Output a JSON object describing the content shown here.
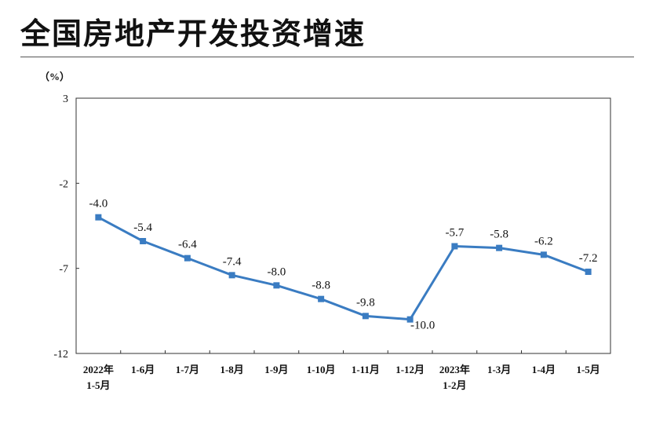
{
  "title": "全国房地产开发投资增速",
  "chart_data": {
    "type": "line",
    "unit_label": "（%）",
    "categories": [
      [
        "2022年",
        "1-5月"
      ],
      [
        "1-6月"
      ],
      [
        "1-7月"
      ],
      [
        "1-8月"
      ],
      [
        "1-9月"
      ],
      [
        "1-10月"
      ],
      [
        "1-11月"
      ],
      [
        "1-12月"
      ],
      [
        "2023年",
        "1-2月"
      ],
      [
        "1-3月"
      ],
      [
        "1-4月"
      ],
      [
        "1-5月"
      ]
    ],
    "series": [
      {
        "values": [
          -4.0,
          -5.4,
          -6.4,
          -7.4,
          -8.0,
          -8.8,
          -9.8,
          -10.0,
          -5.7,
          -5.8,
          -6.2,
          -7.2
        ],
        "labels": [
          "-4.0",
          "-5.4",
          "-6.4",
          "-7.4",
          "-8.0",
          "-8.8",
          "-9.8",
          "-10.0",
          "-5.7",
          "-5.8",
          "-6.2",
          "-7.2"
        ],
        "color": "#3a7cc2"
      }
    ],
    "yticks": [
      3,
      -2,
      -7,
      -12
    ],
    "ytick_labels": [
      "3",
      "-2",
      "-7",
      "-12"
    ],
    "ylim": [
      -12,
      3
    ],
    "grid": false
  }
}
